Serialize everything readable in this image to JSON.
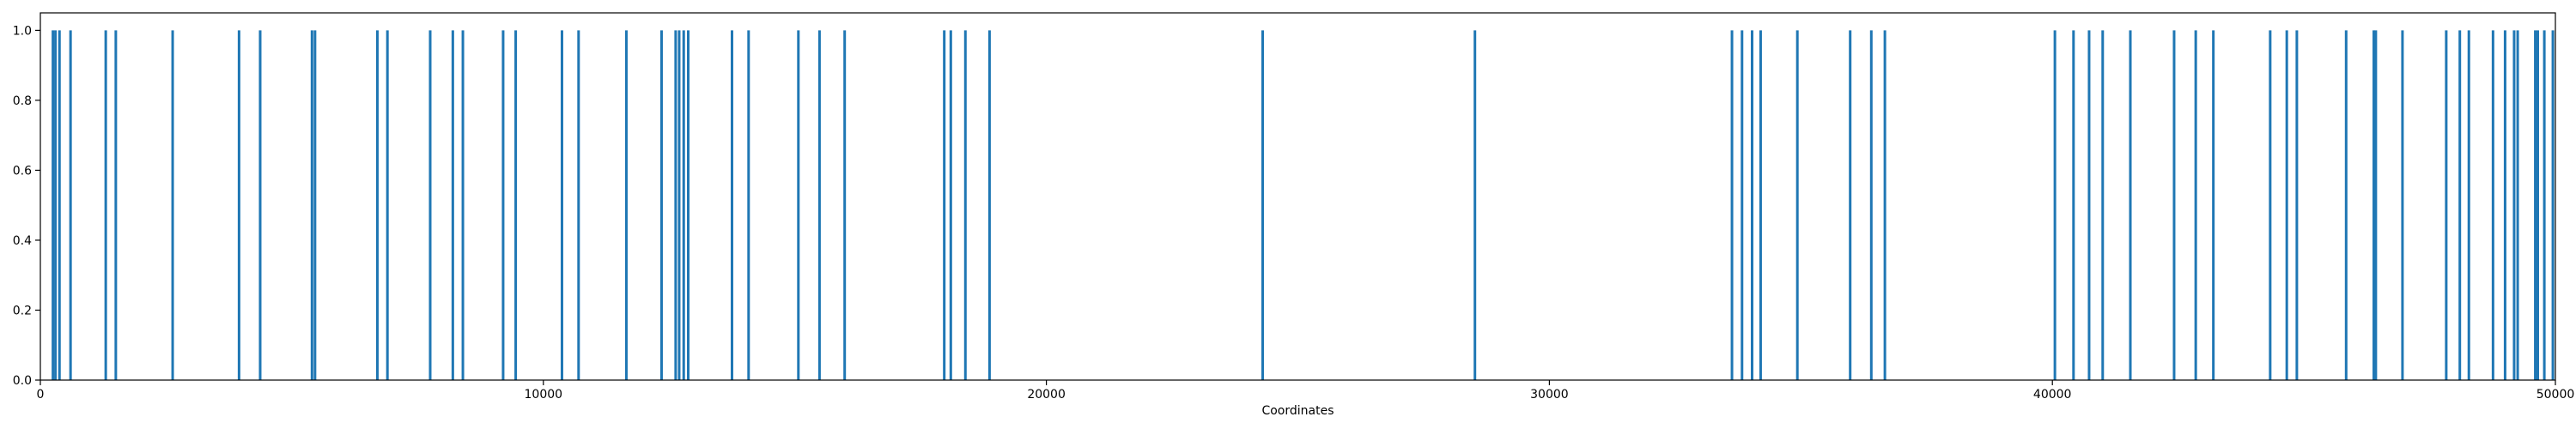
{
  "chart_data": {
    "type": "bar",
    "title": "",
    "xlabel": "Coordinates",
    "ylabel": "",
    "xlim": [
      0,
      50000
    ],
    "ylim": [
      0,
      1.05
    ],
    "x_ticks": [
      0,
      10000,
      20000,
      30000,
      40000,
      50000
    ],
    "x_tick_labels": [
      "0",
      "10000",
      "20000",
      "30000",
      "40000",
      "50000"
    ],
    "y_ticks": [
      0.0,
      0.2,
      0.4,
      0.6,
      0.8,
      1.0
    ],
    "y_tick_labels": [
      "0.0",
      "0.2",
      "0.4",
      "0.6",
      "0.8",
      "1.0"
    ],
    "grid": false,
    "legend": "none",
    "bar_color": "#1f77b4",
    "series": [
      {
        "x": [
          250,
          300,
          380,
          600,
          1300,
          1500,
          2630,
          3950,
          4370,
          5400,
          5460,
          6700,
          6900,
          7750,
          8200,
          8400,
          9200,
          9450,
          10370,
          10700,
          11650,
          12350,
          12630,
          12700,
          12790,
          12880,
          13750,
          14080,
          15070,
          15490,
          15990,
          17970,
          18100,
          18390,
          18870,
          24300,
          28520,
          33630,
          33830,
          34030,
          34200,
          34930,
          35980,
          36400,
          36670,
          40050,
          40420,
          40730,
          41000,
          41550,
          42420,
          42850,
          43200,
          44330,
          44660,
          44860,
          45840,
          46390,
          46430,
          46960,
          47830,
          48100,
          48280,
          48760,
          49000,
          49180,
          49250,
          49600,
          49650,
          49780,
          49950
        ],
        "values": [
          1,
          1,
          1,
          1,
          1,
          1,
          1,
          1,
          1,
          1,
          1,
          1,
          1,
          1,
          1,
          1,
          1,
          1,
          1,
          1,
          1,
          1,
          1,
          1,
          1,
          1,
          1,
          1,
          1,
          1,
          1,
          1,
          1,
          1,
          1,
          1,
          1,
          1,
          1,
          1,
          1,
          1,
          1,
          1,
          1,
          1,
          1,
          1,
          1,
          1,
          1,
          1,
          1,
          1,
          1,
          1,
          1,
          1,
          1,
          1,
          1,
          1,
          1,
          1,
          1,
          1,
          1,
          1,
          1,
          1,
          1
        ]
      }
    ]
  }
}
